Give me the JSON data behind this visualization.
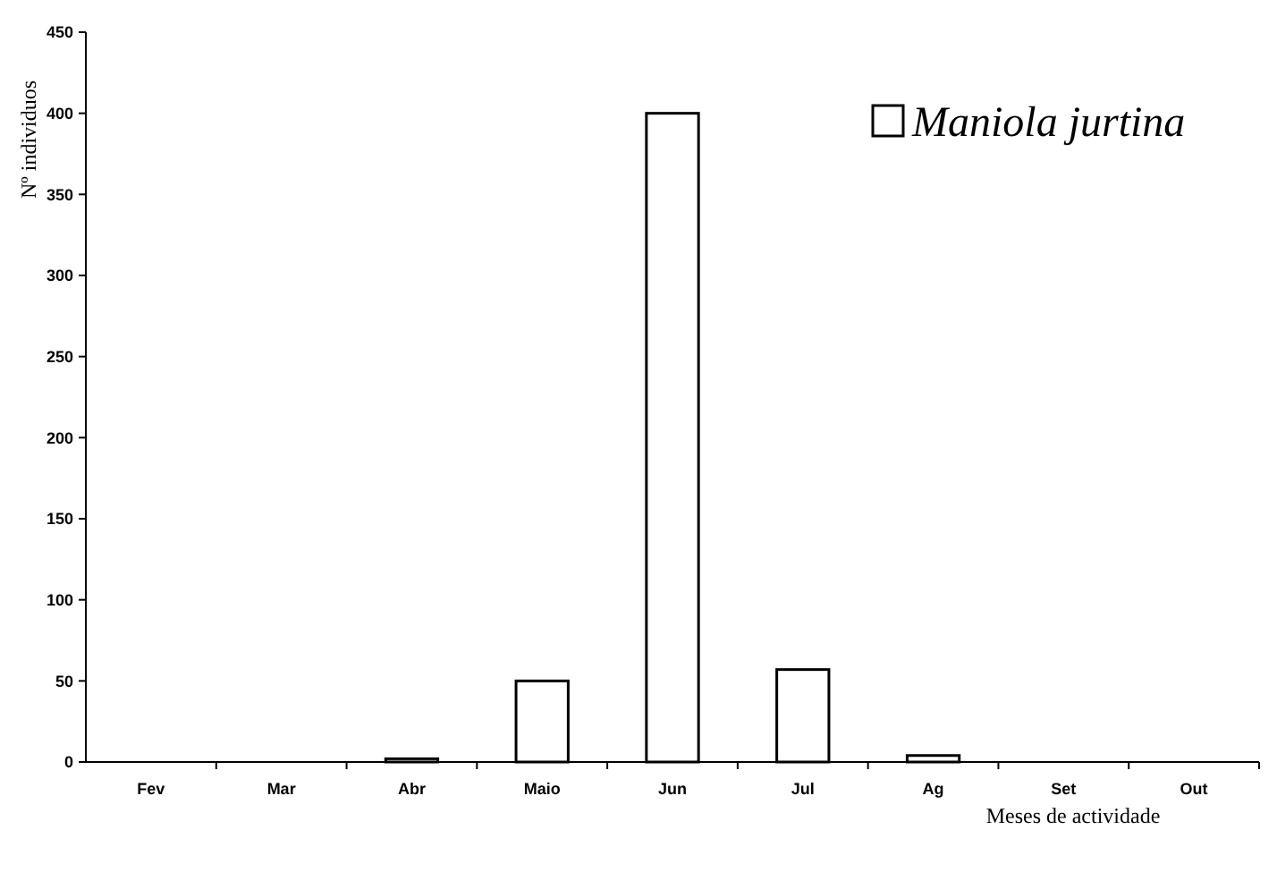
{
  "chart_data": {
    "type": "bar",
    "xlabel": "Meses de actividade",
    "ylabel": "Nº individuos",
    "categories": [
      "Fev",
      "Mar",
      "Abr",
      "Maio",
      "Jun",
      "Jul",
      "Ag",
      "Set",
      "Out"
    ],
    "series": [
      {
        "name": "Maniola jurtina",
        "color": "#ffffff",
        "values": [
          0,
          0,
          2,
          50,
          400,
          57,
          4,
          0,
          0
        ]
      }
    ],
    "ylim": [
      0,
      450
    ],
    "yticks": [
      0,
      50,
      100,
      150,
      200,
      250,
      300,
      350,
      400,
      450
    ],
    "grid": false,
    "legend": "top right"
  }
}
